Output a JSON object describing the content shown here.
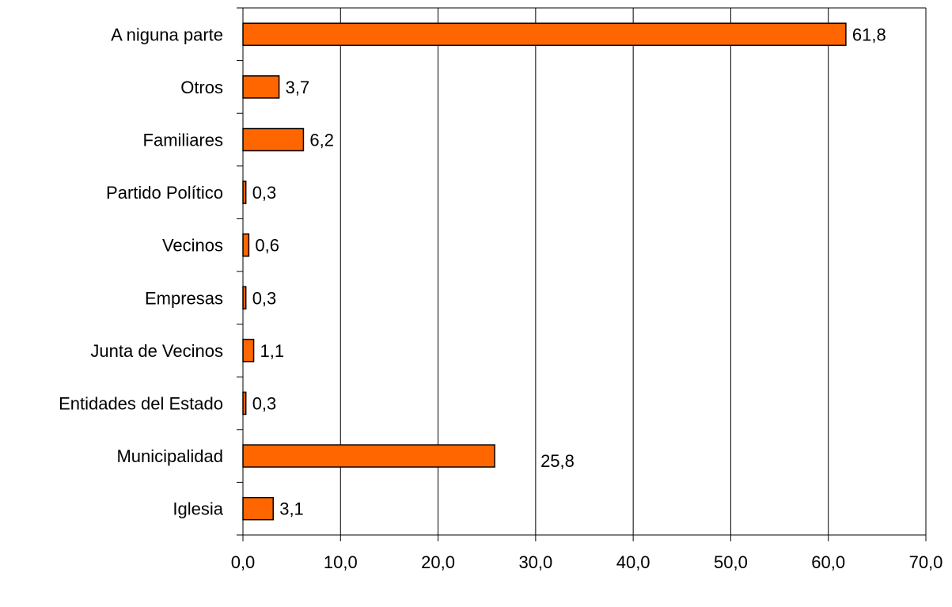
{
  "chart_data": {
    "type": "bar",
    "orientation": "horizontal",
    "categories": [
      "A niguna parte",
      "Otros",
      "Familiares",
      "Partido Político",
      "Vecinos",
      "Empresas",
      "Junta de Vecinos",
      "Entidades del Estado",
      "Municipalidad",
      "Iglesia"
    ],
    "values": [
      61.8,
      3.7,
      6.2,
      0.3,
      0.6,
      0.3,
      1.1,
      0.3,
      25.8,
      3.1
    ],
    "value_labels": [
      "61,8",
      "3,7",
      "6,2",
      "0,3",
      "0,6",
      "0,3",
      "1,1",
      "0,3",
      "25,8",
      "3,1"
    ],
    "x_ticks": [
      "0,0",
      "10,0",
      "20,0",
      "30,0",
      "40,0",
      "50,0",
      "60,0",
      "70,0"
    ],
    "xlim": [
      0,
      70
    ],
    "tick_step": 10,
    "grid": "vertical",
    "legend": "none",
    "title": "",
    "xlabel": "",
    "ylabel": "",
    "colors": {
      "bar": "#FF6600",
      "bar_edge": "#000000",
      "grid": "#000000",
      "axis": "#000000"
    }
  }
}
